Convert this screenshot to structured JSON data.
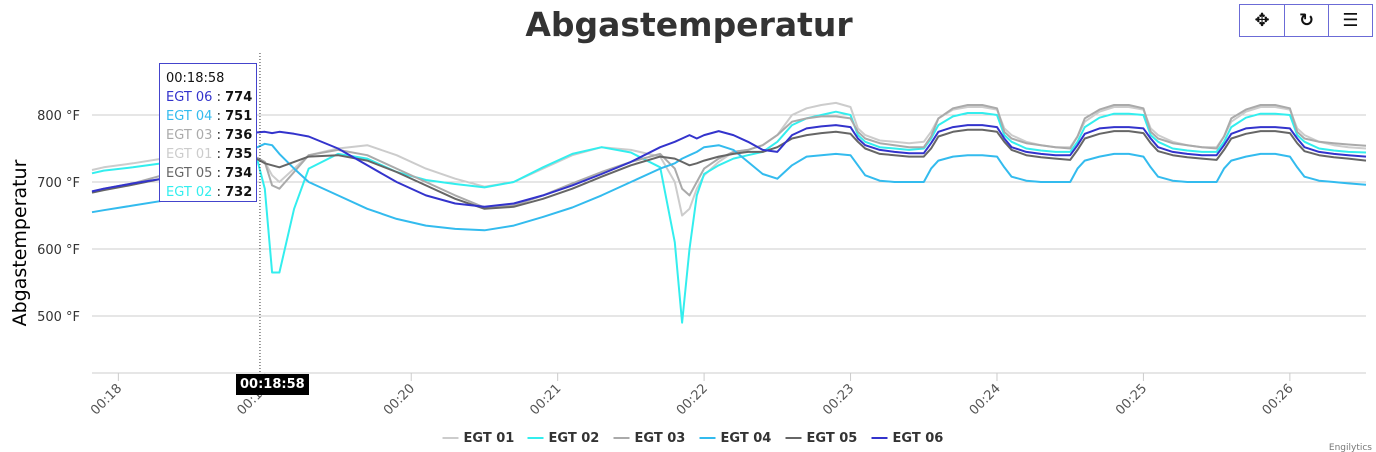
{
  "toolbar": {
    "pan_icon": "move-icon",
    "reset_icon": "rotate-icon",
    "menu_icon": "hamburger-menu-icon",
    "pan_glyph": "✥",
    "reset_glyph": "↻",
    "menu_glyph": "☰"
  },
  "tooltip": {
    "time": "00:18:58",
    "rows": [
      {
        "name": "EGT 06",
        "value": "774",
        "color": "#3333cc"
      },
      {
        "name": "EGT 04",
        "value": "751",
        "color": "#33bbee"
      },
      {
        "name": "EGT 03",
        "value": "736",
        "color": "#aaaaaa"
      },
      {
        "name": "EGT 01",
        "value": "735",
        "color": "#cccccc"
      },
      {
        "name": "EGT 05",
        "value": "734",
        "color": "#666666"
      },
      {
        "name": "EGT 02",
        "value": "732",
        "color": "#33eeee"
      }
    ]
  },
  "crosshair_label": "00:18:58",
  "credits": "Engilytics",
  "chart_data": {
    "type": "line",
    "title": "Abgastemperatur",
    "xlabel": "",
    "ylabel": "Abgastemperatur",
    "y_unit": "°F",
    "ylim": [
      415,
      900
    ],
    "y_ticks": [
      500,
      600,
      700,
      800
    ],
    "y_tick_labels": [
      "500 °F",
      "600 °F",
      "700 °F",
      "800 °F"
    ],
    "x_range_minutes": [
      17.82,
      26.52
    ],
    "x_ticks": [
      18,
      19,
      20,
      21,
      22,
      23,
      24,
      25,
      26
    ],
    "x_tick_labels": [
      "00:18",
      "00:19",
      "00:20",
      "00:21",
      "00:22",
      "00:23",
      "00:24",
      "00:25",
      "00:26"
    ],
    "crosshair_x": 18.967,
    "grid": true,
    "legend_position": "bottom-center",
    "x": [
      17.82,
      17.9,
      18.1,
      18.3,
      18.5,
      18.7,
      18.85,
      18.95,
      19.0,
      19.05,
      19.1,
      19.2,
      19.3,
      19.5,
      19.7,
      19.9,
      20.1,
      20.3,
      20.5,
      20.7,
      20.9,
      21.1,
      21.3,
      21.5,
      21.7,
      21.8,
      21.85,
      21.9,
      21.95,
      22.0,
      22.1,
      22.2,
      22.3,
      22.4,
      22.5,
      22.6,
      22.7,
      22.8,
      22.9,
      23.0,
      23.05,
      23.1,
      23.2,
      23.3,
      23.4,
      23.5,
      23.55,
      23.6,
      23.7,
      23.8,
      23.9,
      24.0,
      24.05,
      24.1,
      24.2,
      24.3,
      24.4,
      24.5,
      24.55,
      24.6,
      24.7,
      24.8,
      24.9,
      25.0,
      25.05,
      25.1,
      25.2,
      25.3,
      25.4,
      25.5,
      25.55,
      25.6,
      25.7,
      25.8,
      25.9,
      26.0,
      26.05,
      26.1,
      26.2,
      26.3,
      26.4,
      26.52
    ],
    "series": [
      {
        "name": "EGT 01",
        "color": "#cccccc",
        "values": [
          718,
          722,
          728,
          735,
          740,
          738,
          735,
          734,
          730,
          710,
          700,
          720,
          740,
          750,
          755,
          740,
          720,
          705,
          693,
          700,
          720,
          740,
          752,
          748,
          738,
          700,
          650,
          660,
          690,
          710,
          730,
          745,
          748,
          755,
          770,
          800,
          810,
          815,
          818,
          812,
          780,
          770,
          762,
          760,
          758,
          760,
          775,
          795,
          808,
          812,
          812,
          808,
          780,
          770,
          760,
          755,
          752,
          752,
          768,
          790,
          805,
          812,
          812,
          808,
          780,
          770,
          760,
          755,
          752,
          752,
          768,
          790,
          805,
          812,
          812,
          808,
          780,
          770,
          760,
          755,
          752,
          750
        ]
      },
      {
        "name": "EGT 02",
        "color": "#33eeee",
        "values": [
          713,
          717,
          722,
          728,
          732,
          732,
          732,
          732,
          690,
          565,
          565,
          660,
          720,
          742,
          735,
          715,
          703,
          697,
          692,
          700,
          722,
          742,
          752,
          744,
          722,
          610,
          490,
          600,
          680,
          712,
          725,
          735,
          740,
          745,
          760,
          785,
          795,
          800,
          805,
          800,
          770,
          760,
          752,
          750,
          748,
          750,
          765,
          785,
          798,
          803,
          803,
          800,
          770,
          760,
          750,
          747,
          745,
          745,
          760,
          782,
          796,
          802,
          802,
          800,
          770,
          760,
          750,
          747,
          745,
          745,
          760,
          782,
          796,
          802,
          802,
          800,
          770,
          760,
          750,
          747,
          745,
          744
        ]
      },
      {
        "name": "EGT 03",
        "color": "#aaaaaa",
        "values": [
          685,
          690,
          698,
          710,
          720,
          730,
          736,
          736,
          730,
          695,
          690,
          715,
          740,
          748,
          740,
          720,
          700,
          680,
          662,
          665,
          680,
          698,
          715,
          730,
          742,
          720,
          690,
          680,
          700,
          720,
          735,
          745,
          748,
          755,
          770,
          790,
          795,
          798,
          798,
          795,
          775,
          765,
          758,
          755,
          752,
          752,
          768,
          795,
          810,
          815,
          815,
          810,
          775,
          765,
          758,
          755,
          752,
          750,
          768,
          795,
          808,
          815,
          815,
          810,
          775,
          765,
          758,
          755,
          752,
          750,
          768,
          795,
          808,
          815,
          815,
          810,
          775,
          765,
          760,
          758,
          756,
          754
        ]
      },
      {
        "name": "EGT 04",
        "color": "#33bbee",
        "values": [
          655,
          658,
          665,
          672,
          690,
          740,
          751,
          752,
          757,
          755,
          742,
          720,
          700,
          680,
          660,
          645,
          635,
          630,
          628,
          635,
          648,
          662,
          680,
          700,
          720,
          728,
          735,
          740,
          745,
          752,
          755,
          748,
          730,
          712,
          705,
          725,
          738,
          740,
          742,
          740,
          725,
          710,
          702,
          700,
          700,
          700,
          720,
          732,
          738,
          740,
          740,
          738,
          722,
          708,
          702,
          700,
          700,
          700,
          720,
          732,
          738,
          742,
          742,
          738,
          722,
          708,
          702,
          700,
          700,
          700,
          720,
          732,
          738,
          742,
          742,
          738,
          722,
          708,
          702,
          700,
          698,
          696
        ]
      },
      {
        "name": "EGT 05",
        "color": "#666666",
        "values": [
          684,
          688,
          696,
          705,
          715,
          725,
          734,
          734,
          728,
          725,
          722,
          730,
          738,
          740,
          732,
          715,
          695,
          675,
          660,
          663,
          675,
          690,
          708,
          725,
          738,
          735,
          730,
          725,
          728,
          732,
          738,
          742,
          745,
          745,
          752,
          765,
          770,
          773,
          775,
          772,
          760,
          750,
          742,
          740,
          738,
          738,
          750,
          768,
          775,
          778,
          778,
          775,
          760,
          748,
          740,
          737,
          735,
          733,
          748,
          765,
          772,
          776,
          776,
          773,
          758,
          746,
          740,
          737,
          735,
          733,
          748,
          765,
          772,
          776,
          776,
          773,
          758,
          746,
          740,
          737,
          735,
          732
        ]
      },
      {
        "name": "EGT 06",
        "color": "#3333cc",
        "values": [
          686,
          690,
          698,
          705,
          712,
          745,
          772,
          774,
          775,
          773,
          775,
          772,
          768,
          750,
          725,
          700,
          680,
          668,
          663,
          668,
          680,
          695,
          712,
          730,
          752,
          760,
          765,
          770,
          765,
          770,
          776,
          770,
          760,
          748,
          745,
          770,
          780,
          783,
          785,
          782,
          765,
          755,
          748,
          745,
          743,
          743,
          758,
          775,
          782,
          785,
          785,
          782,
          765,
          752,
          745,
          742,
          740,
          740,
          755,
          772,
          780,
          782,
          782,
          780,
          765,
          752,
          745,
          742,
          740,
          740,
          755,
          772,
          780,
          782,
          782,
          780,
          765,
          752,
          745,
          742,
          740,
          738
        ]
      }
    ]
  }
}
